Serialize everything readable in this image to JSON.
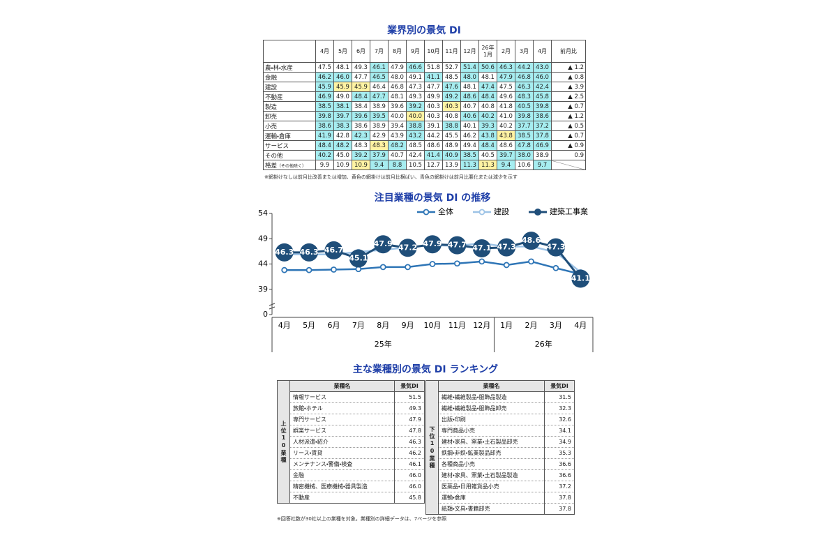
{
  "industry_table": {
    "title": "業界別の景気 DI",
    "columns": [
      "4月",
      "5月",
      "6月",
      "7月",
      "8月",
      "9月",
      "10月",
      "11月",
      "12月",
      "26年\n1月",
      "2月",
      "3月",
      "4月",
      "前月比"
    ],
    "rows": [
      {
        "label": "農・林・水産",
        "values": [
          "47.5",
          "48.1",
          "49.3",
          "46.1",
          "47.9",
          "46.6",
          "51.8",
          "52.7",
          "51.4",
          "50.6",
          "46.3",
          "44.2",
          "43.0"
        ],
        "change": "▲ 1.2",
        "first_shade": "none"
      },
      {
        "label": "金融",
        "values": [
          "46.2",
          "46.0",
          "47.7",
          "46.5",
          "48.0",
          "49.1",
          "41.1",
          "48.5",
          "48.0",
          "48.1",
          "47.9",
          "46.8",
          "46.0"
        ],
        "change": "▲ 0.8",
        "first_shade": "blue"
      },
      {
        "label": "建設",
        "values": [
          "45.9",
          "45.9",
          "45.9",
          "46.4",
          "46.8",
          "47.3",
          "47.7",
          "47.6",
          "48.1",
          "47.4",
          "47.5",
          "46.3",
          "42.4"
        ],
        "change": "▲ 3.9",
        "first_shade": "blue"
      },
      {
        "label": "不動産",
        "values": [
          "46.9",
          "49.0",
          "48.4",
          "47.7",
          "48.1",
          "49.3",
          "49.9",
          "49.2",
          "48.6",
          "48.4",
          "49.6",
          "48.3",
          "45.8"
        ],
        "change": "▲ 2.5",
        "first_shade": "blue"
      },
      {
        "label": "製造",
        "values": [
          "38.5",
          "38.1",
          "38.4",
          "38.9",
          "39.6",
          "39.2",
          "40.3",
          "40.3",
          "40.7",
          "40.8",
          "41.8",
          "40.5",
          "39.8"
        ],
        "change": "▲ 0.7",
        "first_shade": "blue"
      },
      {
        "label": "卸売",
        "values": [
          "39.8",
          "39.7",
          "39.6",
          "39.5",
          "40.0",
          "40.0",
          "40.3",
          "40.8",
          "40.6",
          "40.2",
          "41.0",
          "39.8",
          "38.6"
        ],
        "change": "▲ 1.2",
        "first_shade": "blue"
      },
      {
        "label": "小売",
        "values": [
          "38.6",
          "38.3",
          "38.6",
          "38.9",
          "39.4",
          "38.8",
          "39.1",
          "38.8",
          "40.1",
          "39.3",
          "40.2",
          "37.7",
          "37.2"
        ],
        "change": "▲ 0.5",
        "first_shade": "blue"
      },
      {
        "label": "運輸・倉庫",
        "values": [
          "41.9",
          "42.8",
          "42.3",
          "42.9",
          "43.9",
          "43.2",
          "44.2",
          "45.5",
          "46.2",
          "43.8",
          "43.8",
          "38.5",
          "37.8"
        ],
        "change": "▲ 0.7",
        "first_shade": "blue"
      },
      {
        "label": "サービス",
        "values": [
          "48.4",
          "48.2",
          "48.3",
          "48.3",
          "48.2",
          "48.5",
          "48.6",
          "48.9",
          "49.4",
          "48.4",
          "48.6",
          "47.8",
          "46.9"
        ],
        "change": "▲ 0.9",
        "first_shade": "blue"
      },
      {
        "label": "その他",
        "values": [
          "40.2",
          "45.0",
          "39.2",
          "37.9",
          "40.7",
          "42.4",
          "41.4",
          "40.9",
          "38.5",
          "40.5",
          "39.7",
          "38.0",
          "38.9"
        ],
        "change": "0.9",
        "first_shade": "blue"
      }
    ],
    "diff_row": {
      "label": "格差",
      "sublabel": "（その他除く）",
      "values": [
        "9.9",
        "10.9",
        "10.9",
        "9.4",
        "8.8",
        "10.5",
        "12.7",
        "13.9",
        "11.3",
        "11.3",
        "9.4",
        "10.6",
        "9.7"
      ],
      "first_shade": "none"
    },
    "note": "※網掛けなしは前月比改善または増加、黄色の網掛けは前月比横ばい、青色の網掛けは前月比悪化または減少を示す"
  },
  "chart_data": {
    "type": "line",
    "title": "注目業種の景気 DI の推移",
    "categories": [
      "4月",
      "5月",
      "6月",
      "7月",
      "8月",
      "9月",
      "10月",
      "11月",
      "12月",
      "1月",
      "2月",
      "3月",
      "4月"
    ],
    "group_labels": [
      "25年",
      "26年"
    ],
    "group_sizes": [
      9,
      4
    ],
    "ylim": [
      0,
      54
    ],
    "yticks": [
      0,
      39,
      44,
      49,
      54
    ],
    "axis_break": [
      0,
      39
    ],
    "series": [
      {
        "name": "全体",
        "color": "#2e75b6",
        "marker": "open",
        "values": [
          42.8,
          42.8,
          42.9,
          43.0,
          43.4,
          43.4,
          44.0,
          44.1,
          44.5,
          43.8,
          44.5,
          43.2,
          42.0
        ]
      },
      {
        "name": "建設",
        "color": "#9dc3e6",
        "marker": "open",
        "values": [
          45.9,
          45.9,
          45.9,
          46.4,
          46.8,
          47.3,
          47.7,
          47.6,
          48.1,
          47.4,
          47.5,
          46.3,
          42.4
        ]
      },
      {
        "name": "建築工事業",
        "color": "#1f4e79",
        "marker": "labeled",
        "values": [
          46.3,
          46.3,
          46.7,
          45.1,
          47.9,
          47.2,
          47.9,
          47.7,
          47.1,
          47.3,
          48.6,
          47.3,
          41.1
        ]
      }
    ]
  },
  "ranking": {
    "title": "主な業種別の景気 DI ランキング",
    "top": {
      "label": "上位10業種",
      "headers": [
        "業種名",
        "景気DI"
      ],
      "rows": [
        [
          "情報サービス",
          "51.5"
        ],
        [
          "旅館・ホテル",
          "49.3"
        ],
        [
          "専門サービス",
          "47.9"
        ],
        [
          "娯楽サービス",
          "47.8"
        ],
        [
          "人材派遣・紹介",
          "46.3"
        ],
        [
          "リース・賃貸",
          "46.2"
        ],
        [
          "メンテナンス・警備・検査",
          "46.1"
        ],
        [
          "金融",
          "46.0"
        ],
        [
          "精密機械、医療機械・器具製造",
          "46.0"
        ],
        [
          "不動産",
          "45.8"
        ]
      ]
    },
    "bottom": {
      "label": "下位10業種",
      "headers": [
        "業種名",
        "景気DI"
      ],
      "rows": [
        [
          "繊維・繊維製品・服飾品製造",
          "31.5"
        ],
        [
          "繊維・繊維製品・服飾品卸売",
          "32.3"
        ],
        [
          "出版・印刷",
          "32.6"
        ],
        [
          "専門商品小売",
          "34.1"
        ],
        [
          "建材・家具、窯業・土石製品卸売",
          "34.9"
        ],
        [
          "鉄鋼・非鉄・鉱業製品卸売",
          "35.3"
        ],
        [
          "各種商品小売",
          "36.6"
        ],
        [
          "建材・家具、窯業・土石製品製造",
          "36.6"
        ],
        [
          "医薬品・日用雑貨品小売",
          "37.2"
        ],
        [
          "運輸・倉庫",
          "37.8"
        ],
        [
          "紙類・文具・書籍卸売",
          "37.8"
        ]
      ]
    },
    "note": "※回答社数が30社以上の業種を対象。業種別の詳細データは、7ページを参照"
  }
}
